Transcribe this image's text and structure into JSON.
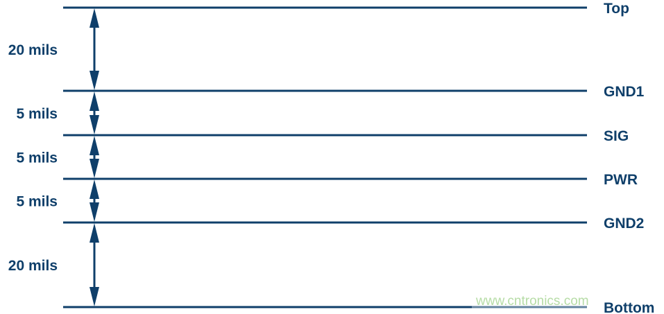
{
  "color": "#0f3f6a",
  "layers": [
    {
      "name": "Top"
    },
    {
      "name": "GND1"
    },
    {
      "name": "SIG"
    },
    {
      "name": "PWR"
    },
    {
      "name": "GND2"
    },
    {
      "name": "Bottom"
    }
  ],
  "spacings": [
    "20 mils",
    "5 mils",
    "5 mils",
    "5 mils",
    "20 mils"
  ],
  "watermark": "www.cntronics.com",
  "watermark_color": "#b6dca6"
}
